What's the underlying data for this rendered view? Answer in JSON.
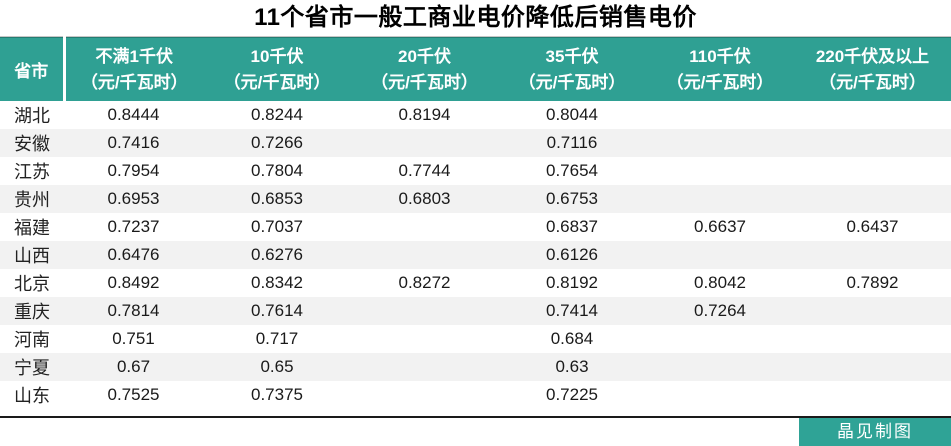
{
  "chart_data": {
    "type": "table",
    "title": "11个省市一般工商业电价降低后销售电价",
    "province_header": "省市",
    "columns": [
      {
        "label": "不满1千伏",
        "unit": "（元/千瓦时）"
      },
      {
        "label": "10千伏",
        "unit": "（元/千瓦时）"
      },
      {
        "label": "20千伏",
        "unit": "（元/千瓦时）"
      },
      {
        "label": "35千伏",
        "unit": "（元/千瓦时）"
      },
      {
        "label": "110千伏",
        "unit": "（元/千瓦时）"
      },
      {
        "label": "220千伏及以上",
        "unit": "（元/千瓦时）"
      }
    ],
    "rows": [
      {
        "province": "湖北",
        "values": [
          "0.8444",
          "0.8244",
          "0.8194",
          "0.8044",
          "",
          ""
        ]
      },
      {
        "province": "安徽",
        "values": [
          "0.7416",
          "0.7266",
          "",
          "0.7116",
          "",
          ""
        ]
      },
      {
        "province": "江苏",
        "values": [
          "0.7954",
          "0.7804",
          "0.7744",
          "0.7654",
          "",
          ""
        ]
      },
      {
        "province": "贵州",
        "values": [
          "0.6953",
          "0.6853",
          "0.6803",
          "0.6753",
          "",
          ""
        ]
      },
      {
        "province": "福建",
        "values": [
          "0.7237",
          "0.7037",
          "",
          "0.6837",
          "0.6637",
          "0.6437"
        ]
      },
      {
        "province": "山西",
        "values": [
          "0.6476",
          "0.6276",
          "",
          "0.6126",
          "",
          ""
        ]
      },
      {
        "province": "北京",
        "values": [
          "0.8492",
          "0.8342",
          "0.8272",
          "0.8192",
          "0.8042",
          "0.7892"
        ]
      },
      {
        "province": "重庆",
        "values": [
          "0.7814",
          "0.7614",
          "",
          "0.7414",
          "0.7264",
          ""
        ]
      },
      {
        "province": "河南",
        "values": [
          "0.751",
          "0.717",
          "",
          "0.684",
          "",
          ""
        ]
      },
      {
        "province": "宁夏",
        "values": [
          "0.67",
          "0.65",
          "",
          "0.63",
          "",
          ""
        ]
      },
      {
        "province": "山东",
        "values": [
          "0.7525",
          "0.7375",
          "",
          "0.7225",
          "",
          ""
        ]
      }
    ]
  },
  "credit": "晶见制图",
  "colors": {
    "header_bg": "#2FA093",
    "badge_bg": "#2FA396",
    "stripe": "#F2F2F2",
    "line": "#1A1A1A"
  }
}
